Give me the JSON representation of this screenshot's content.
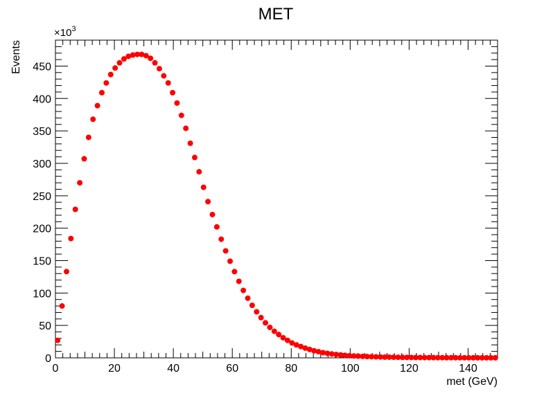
{
  "chart_data": {
    "type": "scatter",
    "title": "MET",
    "xlabel": "met (GeV)",
    "ylabel": "Events",
    "y_multiplier_label": "×10",
    "y_multiplier_exponent": "3",
    "xlim": [
      0,
      150
    ],
    "ylim": [
      0,
      490
    ],
    "grid": false,
    "marker_color": "#ff0000",
    "x_ticks": [
      0,
      20,
      40,
      60,
      80,
      100,
      120,
      140
    ],
    "y_ticks": [
      0,
      50,
      100,
      150,
      200,
      250,
      300,
      350,
      400,
      450
    ],
    "series": [
      {
        "x": [
          0.75,
          2.25,
          3.75,
          5.25,
          6.75,
          8.25,
          9.75,
          11.25,
          12.75,
          14.25,
          15.75,
          17.25,
          18.75,
          20.25,
          21.75,
          23.25,
          24.75,
          26.25,
          27.75,
          29.25,
          30.75,
          32.25,
          33.75,
          35.25,
          36.75,
          38.25,
          39.75,
          41.25,
          42.75,
          44.25,
          45.75,
          47.25,
          48.75,
          50.25,
          51.75,
          53.25,
          54.75,
          56.25,
          57.75,
          59.25,
          60.75,
          62.25,
          63.75,
          65.25,
          66.75,
          68.25,
          69.75,
          71.25,
          72.75,
          74.25,
          75.75,
          77.25,
          78.75,
          80.25,
          81.75,
          83.25,
          84.75,
          86.25,
          87.75,
          89.25,
          90.75,
          92.25,
          93.75,
          95.25,
          96.75,
          98.25,
          99.75,
          101.25,
          102.75,
          104.25,
          105.75,
          107.25,
          108.75,
          110.25,
          111.75,
          113.25,
          114.75,
          116.25,
          117.75,
          119.25,
          120.75,
          122.25,
          123.75,
          125.25,
          126.75,
          128.25,
          129.75,
          131.25,
          132.75,
          134.25,
          135.75,
          137.25,
          138.75,
          140.25,
          141.75,
          143.25,
          144.75,
          146.25,
          147.75,
          149.25
        ],
        "y": [
          27,
          80,
          133,
          184,
          229,
          270,
          307,
          340,
          368,
          389,
          409,
          424,
          437,
          447,
          455,
          461,
          465,
          467,
          468,
          468,
          466,
          462,
          455,
          446,
          435,
          424,
          409,
          393,
          374,
          354,
          331,
          309,
          287,
          263,
          241,
          221,
          202,
          183,
          165,
          149,
          133,
          118,
          104,
          92,
          81,
          71,
          62,
          54,
          47,
          41,
          36,
          31,
          27,
          23,
          20,
          17.5,
          15,
          13,
          11,
          9.5,
          8,
          7,
          6,
          5.2,
          4.5,
          3.9,
          3.4,
          3,
          2.6,
          2.3,
          2,
          1.8,
          1.6,
          1.4,
          1.2,
          1.1,
          1,
          0.9,
          0.8,
          0.7,
          0.6,
          0.55,
          0.5,
          0.45,
          0.4,
          0.36,
          0.33,
          0.3,
          0.27,
          0.24,
          0.22,
          0.2,
          0.18,
          0.16,
          0.15,
          0.14,
          0.13,
          0.12,
          0.11,
          0.1
        ]
      }
    ]
  }
}
